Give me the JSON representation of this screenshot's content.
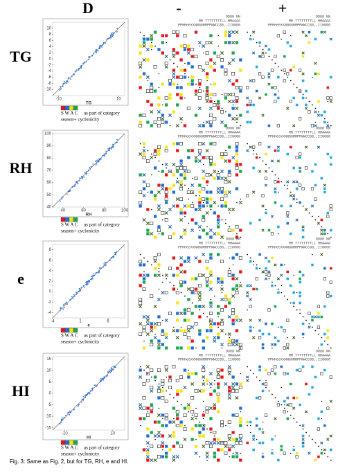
{
  "header": {
    "columns": [
      "D",
      "-",
      "+"
    ]
  },
  "legend": {
    "letters": "S W A C",
    "category_text": "as part of category",
    "cross_text": "season+ cyclonicity",
    "colors": [
      "#e8141a",
      "#1f6fd1",
      "#f5e514",
      "#1aa64b"
    ]
  },
  "matrix_header": [
    "DD88        NN",
    "RR  TTTTTTTTLL      HHAAAA",
    "PPHHeeXXNNGGRRPPWWCC88,,II0000"
  ],
  "rows": [
    {
      "label": "TG",
      "axis_title": "TG",
      "xlim": [
        -12,
        12
      ],
      "ylim": [
        -12,
        12
      ],
      "xticks": [
        -10,
        10
      ],
      "yticks": [
        10,
        8,
        6,
        4,
        2,
        0,
        -2,
        -4,
        -6,
        -8,
        -10
      ]
    },
    {
      "label": "RH",
      "axis_title": "RH",
      "xlim": [
        30,
        100
      ],
      "ylim": [
        40,
        100
      ],
      "xticks": [
        40,
        60,
        80,
        100
      ],
      "yticks": [
        100,
        90,
        80,
        70,
        60,
        50,
        40
      ]
    },
    {
      "label": "e",
      "axis_title": "e",
      "xlim": [
        -4,
        9
      ],
      "ylim": [
        -5,
        9
      ],
      "xticks": [
        -4,
        1,
        6
      ],
      "yticks": [
        8,
        6,
        4,
        2,
        0,
        -2,
        -4
      ]
    },
    {
      "label": "HI",
      "axis_title": "HI",
      "xlim": [
        -15,
        15
      ],
      "ylim": [
        -16,
        16
      ],
      "xticks": [
        -10,
        10
      ],
      "yticks": [
        15,
        10,
        5,
        0,
        -5,
        -10,
        -15
      ]
    }
  ],
  "caption": "Fig. 3: Same as Fig. 2, but for TG, RH, e and HI."
}
